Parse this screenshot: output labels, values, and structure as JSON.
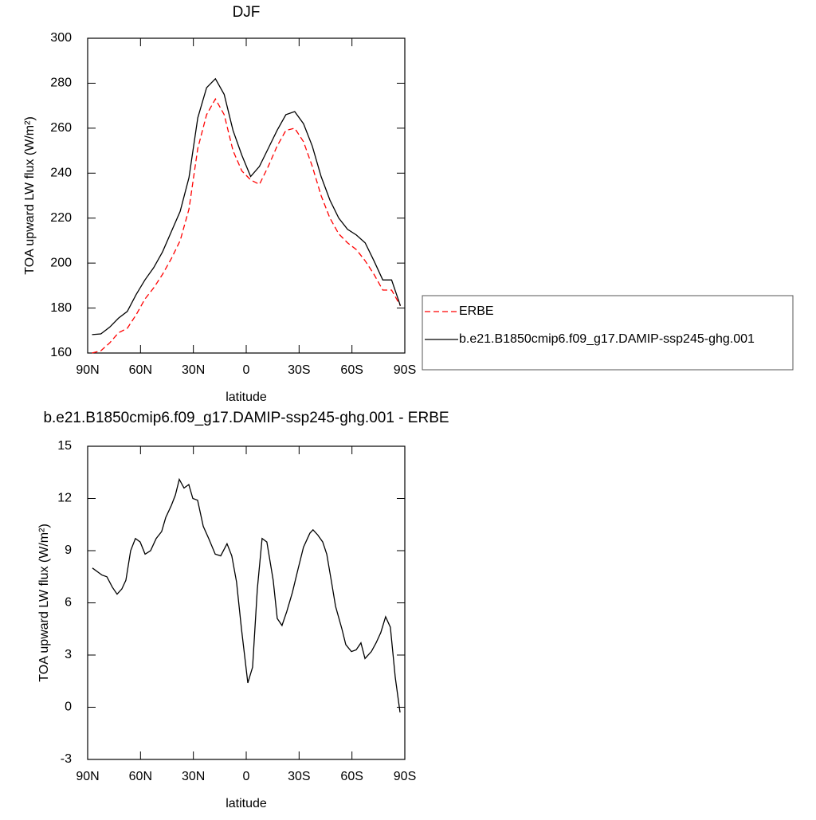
{
  "chart_data": [
    {
      "type": "line",
      "title": "DJF",
      "x_label": "latitude",
      "y_label": "TOA upward LW flux (W/m²)",
      "x": [
        87.5,
        82.5,
        77.5,
        72.5,
        67.5,
        62.5,
        57.5,
        52.5,
        47.5,
        42.5,
        37.5,
        32.5,
        27.5,
        22.5,
        17.5,
        12.5,
        7.5,
        2.5,
        -2.5,
        -7.5,
        -12.5,
        -17.5,
        -22.5,
        -27.5,
        -32.5,
        -37.5,
        -42.5,
        -47.5,
        -52.5,
        -57.5,
        -62.5,
        -67.5,
        -72.5,
        -77.5,
        -82.5,
        -87.5
      ],
      "series": [
        {
          "name": "ERBE",
          "color": "#ff0000",
          "line_style": "dashed",
          "values": [
            160,
            161,
            164.5,
            169,
            171,
            177,
            184,
            189,
            195,
            202,
            210,
            224,
            251,
            266,
            273,
            266,
            250,
            241,
            237,
            235,
            243,
            252,
            259,
            260,
            254,
            243,
            230,
            220,
            213,
            209,
            206,
            201,
            195,
            188,
            188,
            181
          ]
        },
        {
          "name": "b.e21.B1850cmip6.f09_g17.DAMIP-ssp245-ghg.001",
          "color": "#000000",
          "line_style": "solid",
          "values": [
            168.2,
            168.5,
            171.5,
            175.5,
            178.5,
            186,
            192.5,
            198,
            205,
            214,
            223,
            238,
            264.6,
            278,
            282,
            275,
            259,
            248,
            238.5,
            243,
            251,
            259,
            266,
            267.4,
            262,
            252,
            238.5,
            228,
            220,
            215,
            212.5,
            209,
            201,
            192.5,
            192.5,
            181
          ]
        }
      ],
      "xlim": [
        90,
        -90
      ],
      "xticks": [
        {
          "value": 90,
          "label": "90N"
        },
        {
          "value": 60,
          "label": "60N"
        },
        {
          "value": 30,
          "label": "30N"
        },
        0,
        {
          "value": -30,
          "label": "30S"
        },
        {
          "value": -60,
          "label": "60S"
        },
        {
          "value": -90,
          "label": "90S"
        }
      ],
      "ylim": [
        160,
        300
      ],
      "yticks": [
        160,
        180,
        200,
        220,
        240,
        260,
        280,
        300
      ],
      "legend": "right"
    },
    {
      "type": "line",
      "title": "b.e21.B1850cmip6.f09_g17.DAMIP-ssp245-ghg.001 - ERBE",
      "x_label": "latitude",
      "y_label": "TOA upward LW flux (W/m²)",
      "x": [
        87.3,
        81.9,
        79.1,
        76,
        73.3,
        70.6,
        68.3,
        65.6,
        62.9,
        60.2,
        57.4,
        54.3,
        51.1,
        48,
        45.7,
        42.5,
        40.2,
        38,
        35.3,
        32.6,
        30.3,
        27.6,
        24.4,
        21.3,
        17.6,
        14.5,
        10.9,
        8.2,
        5.5,
        2.7,
        -0.9,
        -3.6,
        -6.3,
        -9,
        -11.7,
        -15.3,
        -17.6,
        -20.3,
        -23,
        -26.2,
        -29.3,
        -32.5,
        -36.1,
        -37.9,
        -40.6,
        -43.4,
        -45.7,
        -48.4,
        -50.7,
        -54.3,
        -56.5,
        -59.7,
        -62.4,
        -65.1,
        -67.4,
        -71,
        -73.7,
        -76.4,
        -79.1,
        -81.8,
        -84.6,
        -87.3
      ],
      "values": [
        8.0,
        7.6,
        7.5,
        6.9,
        6.5,
        6.8,
        7.3,
        9.0,
        9.7,
        9.5,
        8.8,
        9.0,
        9.7,
        10.1,
        10.9,
        11.6,
        12.2,
        13.1,
        12.6,
        12.8,
        12.0,
        11.9,
        10.4,
        9.7,
        8.8,
        8.7,
        9.4,
        8.7,
        7.2,
        4.5,
        1.4,
        2.3,
        6.8,
        9.7,
        9.5,
        7.3,
        5.1,
        4.7,
        5.5,
        6.6,
        7.9,
        9.2,
        10.0,
        10.2,
        9.9,
        9.5,
        8.8,
        7.2,
        5.8,
        4.5,
        3.6,
        3.2,
        3.3,
        3.7,
        2.8,
        3.2,
        3.7,
        4.3,
        5.2,
        4.6,
        1.7,
        -0.3
      ],
      "color": "#000000",
      "xlim": [
        90,
        -90
      ],
      "xticks": [
        {
          "value": 90,
          "label": "90N"
        },
        {
          "value": 60,
          "label": "60N"
        },
        {
          "value": 30,
          "label": "30N"
        },
        0,
        {
          "value": -30,
          "label": "30S"
        },
        {
          "value": -60,
          "label": "60S"
        },
        {
          "value": -90,
          "label": "90S"
        }
      ],
      "ylim": [
        -3,
        15
      ],
      "yticks": [
        -3,
        0,
        3,
        6,
        9,
        12,
        15
      ]
    }
  ]
}
